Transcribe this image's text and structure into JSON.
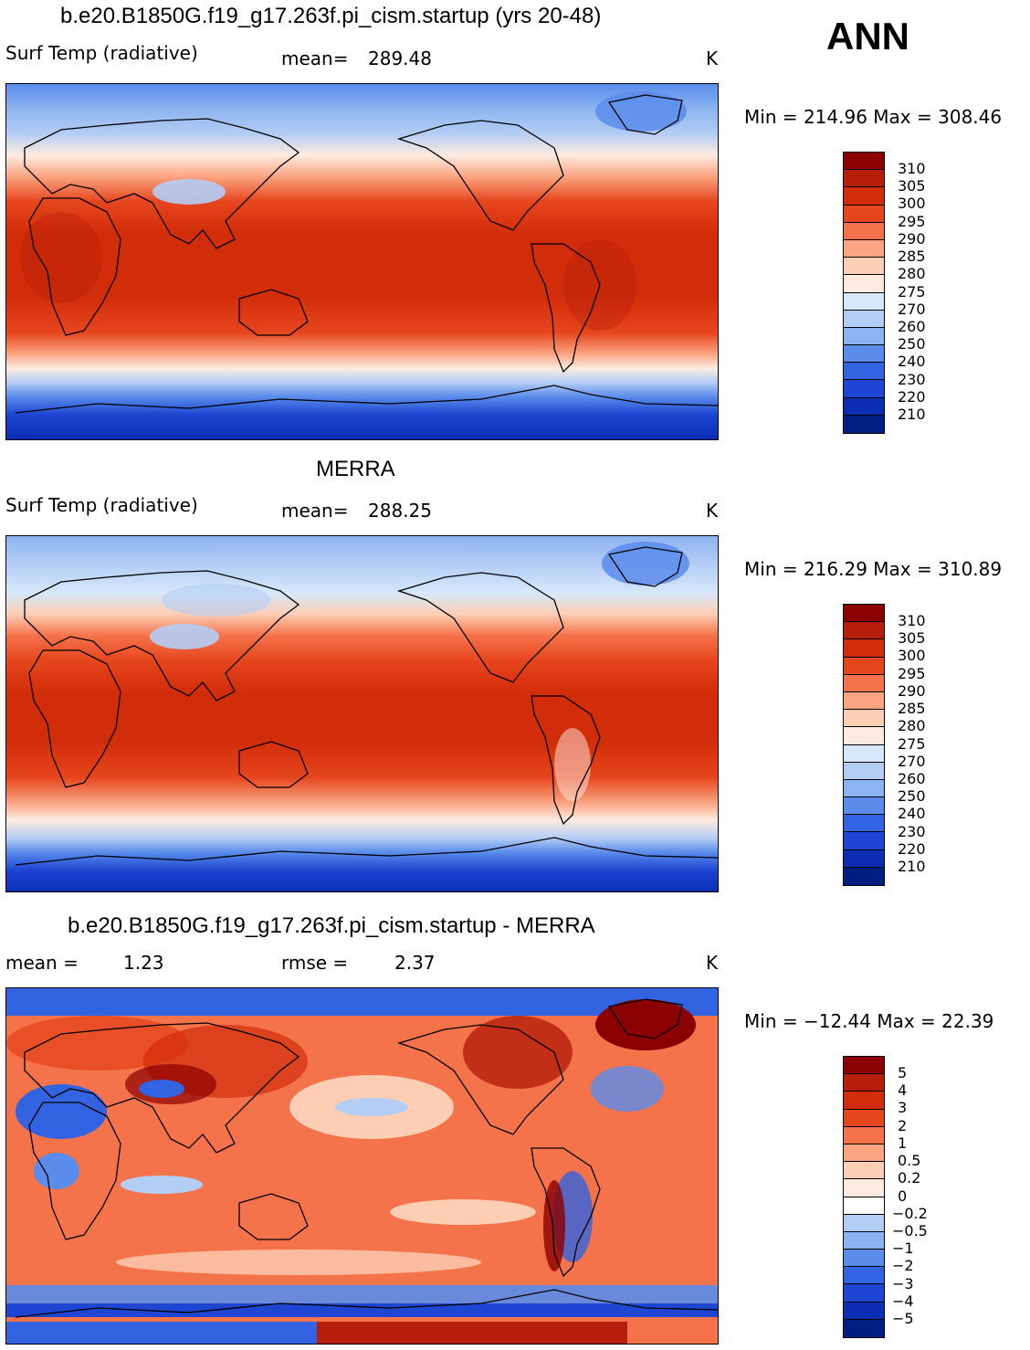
{
  "season": "ANN",
  "panels": [
    {
      "title": "b.e20.B1850G.f19_g17.263f.pi_cism.startup (yrs 20-48)",
      "left_label": "Surf Temp (radiative)",
      "stat_label": "mean=",
      "stat_value": "289.48",
      "units": "K",
      "minmax": "Min = 214.96 Max = 308.46",
      "levels": [
        "310",
        "305",
        "300",
        "295",
        "290",
        "285",
        "280",
        "275",
        "270",
        "260",
        "250",
        "240",
        "230",
        "220",
        "210"
      ]
    },
    {
      "title": "MERRA",
      "left_label": "Surf Temp (radiative)",
      "stat_label": "mean=",
      "stat_value": "288.25",
      "units": "K",
      "minmax": "Min = 216.29 Max = 310.89",
      "levels": [
        "310",
        "305",
        "300",
        "295",
        "290",
        "285",
        "280",
        "275",
        "270",
        "260",
        "250",
        "240",
        "230",
        "220",
        "210"
      ]
    },
    {
      "title": "b.e20.B1850G.f19_g17.263f.pi_cism.startup - MERRA",
      "left_label": "mean =",
      "left_value": "1.23",
      "stat_label": "rmse =",
      "stat_value": "2.37",
      "units": "K",
      "minmax": "Min = −12.44 Max =  22.39",
      "levels": [
        "5",
        "4",
        "3",
        "2",
        "1",
        "0.5",
        "0.2",
        "0",
        "−0.2",
        "−0.5",
        "−1",
        "−2",
        "−3",
        "−4",
        "−5"
      ]
    }
  ],
  "colors": {
    "abs_scale": [
      "#8b0000",
      "#b41e0a",
      "#d22d0a",
      "#e6461e",
      "#f5734b",
      "#fba582",
      "#fdcdb4",
      "#fdebe1",
      "#d7e8fb",
      "#b4cdf5",
      "#8cb4f0",
      "#5a8ceb",
      "#3264e1",
      "#1e46d2",
      "#0a2db4",
      "#001e82"
    ],
    "diff_scale": [
      "#8b0000",
      "#b41e0a",
      "#d22d0a",
      "#e6461e",
      "#f5734b",
      "#fba582",
      "#fdcdb4",
      "#fdebe1",
      "#ffffff",
      "#d7e8fb",
      "#b4cdf5",
      "#8cb4f0",
      "#5a8ceb",
      "#3264e1",
      "#1e46d2",
      "#001e82"
    ]
  }
}
